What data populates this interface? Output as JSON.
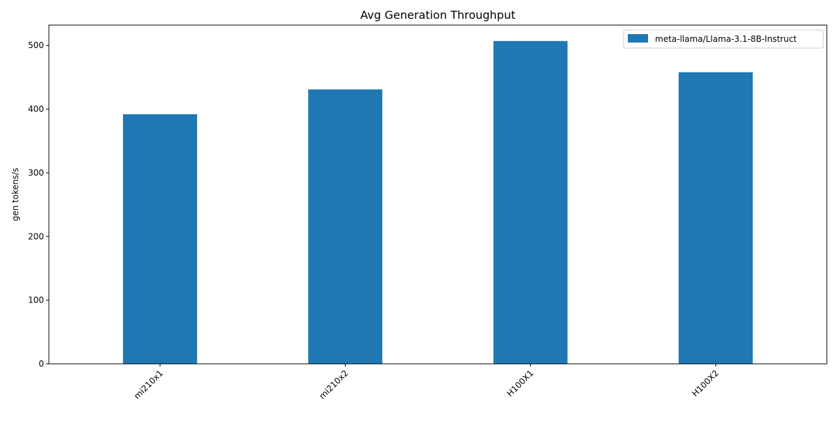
{
  "chart_data": {
    "type": "bar",
    "title": "Avg Generation Throughput",
    "xlabel": "",
    "ylabel": "gen tokens/s",
    "categories": [
      "mi210x1",
      "mi210x2",
      "H100X1",
      "H100X2"
    ],
    "series": [
      {
        "name": "meta-llama/Llama-3.1-8B-Instruct",
        "values": [
          392,
          431,
          507,
          458
        ],
        "color": "#1f77b4"
      }
    ],
    "ylim": [
      0,
      532
    ],
    "yticks": [
      0,
      100,
      200,
      300,
      400,
      500
    ],
    "grid": false,
    "legend": "top-right"
  }
}
